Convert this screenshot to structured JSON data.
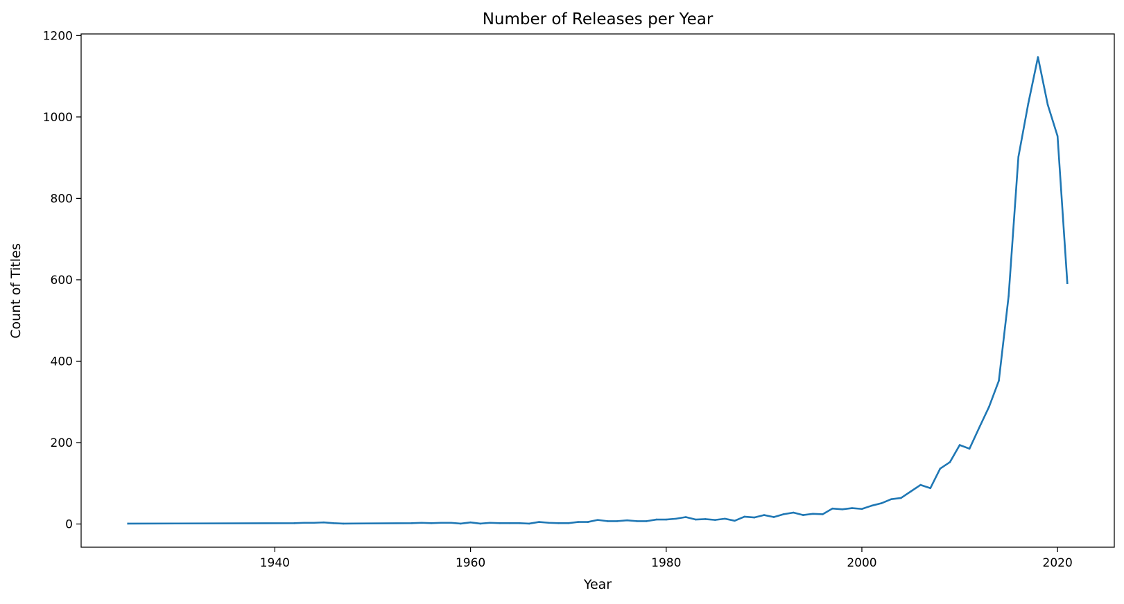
{
  "chart_data": {
    "type": "line",
    "title": "Number of Releases per Year",
    "xlabel": "Year",
    "ylabel": "Count of Titles",
    "xlim": [
      1920.2,
      2025.8
    ],
    "ylim": [
      -57,
      1204
    ],
    "x_ticks": [
      1940,
      1960,
      1980,
      2000,
      2020
    ],
    "y_ticks": [
      0,
      200,
      400,
      600,
      800,
      1000,
      1200
    ],
    "grid": false,
    "legend": "none",
    "series": [
      {
        "color": "#1f77b4",
        "x": [
          1925,
          1942,
          1943,
          1944,
          1945,
          1946,
          1947,
          1954,
          1955,
          1956,
          1957,
          1958,
          1959,
          1960,
          1961,
          1962,
          1963,
          1964,
          1965,
          1966,
          1967,
          1968,
          1969,
          1970,
          1971,
          1972,
          1973,
          1974,
          1975,
          1976,
          1977,
          1978,
          1979,
          1980,
          1981,
          1982,
          1983,
          1984,
          1985,
          1986,
          1987,
          1988,
          1989,
          1990,
          1991,
          1992,
          1993,
          1994,
          1995,
          1996,
          1997,
          1998,
          1999,
          2000,
          2001,
          2002,
          2003,
          2004,
          2005,
          2006,
          2007,
          2008,
          2009,
          2010,
          2011,
          2012,
          2013,
          2014,
          2015,
          2016,
          2017,
          2018,
          2019,
          2020,
          2021
        ],
        "y": [
          1,
          2,
          3,
          3,
          4,
          2,
          1,
          2,
          3,
          2,
          3,
          3,
          1,
          4,
          1,
          3,
          2,
          2,
          2,
          1,
          5,
          3,
          2,
          2,
          5,
          5,
          10,
          7,
          7,
          9,
          7,
          7,
          11,
          11,
          13,
          17,
          11,
          12,
          10,
          13,
          8,
          18,
          16,
          22,
          17,
          24,
          28,
          22,
          25,
          24,
          38,
          36,
          39,
          37,
          45,
          51,
          61,
          64,
          80,
          96,
          88,
          136,
          152,
          194,
          185,
          237,
          288,
          352,
          560,
          902,
          1032,
          1147,
          1030,
          953,
          592
        ]
      }
    ]
  }
}
